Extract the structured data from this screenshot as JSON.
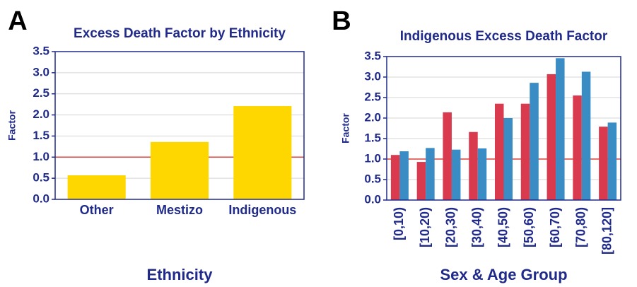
{
  "chart_data": [
    {
      "type": "bar",
      "panel": "A",
      "title": "Excess Death Factor by Ethnicity",
      "ylabel": "Factor",
      "xlabel": "Ethnicity",
      "categories": [
        "Other",
        "Mestizo",
        "Indigenous"
      ],
      "series": [
        {
          "color": "#ffd700",
          "values": [
            0.57,
            1.36,
            2.21
          ]
        }
      ],
      "ylim": [
        0,
        3.5
      ],
      "yticks": [
        {
          "value": 0,
          "label": "0.0"
        },
        0.5,
        {
          "value": 1,
          "label": "1.0"
        },
        1.5,
        {
          "value": 2,
          "label": "2.0"
        },
        2.5,
        {
          "value": 3,
          "label": "3.0"
        },
        3.5
      ],
      "reference_line": 1,
      "reference_color": "#e0413a",
      "grid": true,
      "rotate_categories": false
    },
    {
      "type": "bar",
      "panel": "B",
      "title": "Indigenous Excess Death Factor",
      "ylabel": "Factor",
      "xlabel": "Sex & Age Group",
      "categories": [
        "[0,10)",
        "[10,20)",
        "[20,30)",
        "[30,40)",
        "[40,50)",
        "[50,60)",
        "[60,70)",
        "[70,80)",
        "[80,120]"
      ],
      "series": [
        {
          "color": "#d93a4d",
          "values": [
            1.1,
            0.93,
            2.14,
            1.66,
            2.35,
            2.35,
            3.07,
            2.55,
            1.79
          ]
        },
        {
          "color": "#3a8cc4",
          "values": [
            1.19,
            1.27,
            1.23,
            1.26,
            2.0,
            2.86,
            3.46,
            3.13,
            1.89
          ]
        }
      ],
      "ylim": [
        0,
        3.5
      ],
      "yticks": [
        {
          "value": 0,
          "label": "0.0"
        },
        0.5,
        {
          "value": 1,
          "label": "1.0"
        },
        1.5,
        {
          "value": 2,
          "label": "2.0"
        },
        2.5,
        {
          "value": 3,
          "label": "3.0"
        },
        3.5
      ],
      "reference_line": 1,
      "reference_color": "#e0413a",
      "grid": true,
      "rotate_categories": true
    }
  ]
}
